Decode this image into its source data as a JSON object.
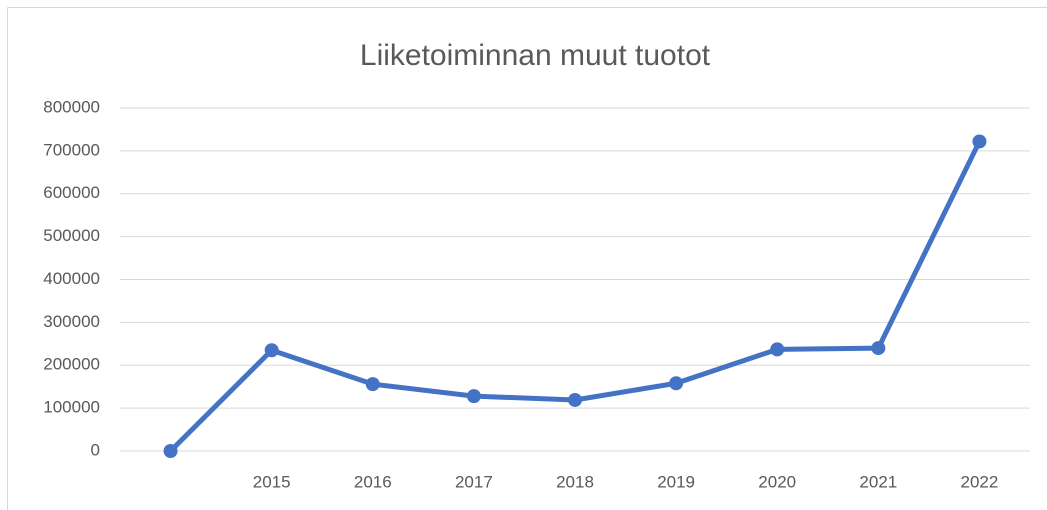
{
  "chart_data": {
    "type": "line",
    "title": "Liiketoiminnan muut tuotot",
    "categories": [
      null,
      "2015",
      "2016",
      "2017",
      "2018",
      "2019",
      "2020",
      "2021",
      "2022"
    ],
    "series": [
      {
        "name": "Liiketoiminnan muut tuotot",
        "color": "#4472c4",
        "values": [
          0,
          235000,
          156000,
          128000,
          119000,
          158000,
          237000,
          240000,
          722000
        ]
      }
    ],
    "ylim": [
      0,
      800000
    ],
    "yticks": [
      0,
      100000,
      200000,
      300000,
      400000,
      500000,
      600000,
      700000,
      800000
    ],
    "grid": true,
    "legend": false
  }
}
